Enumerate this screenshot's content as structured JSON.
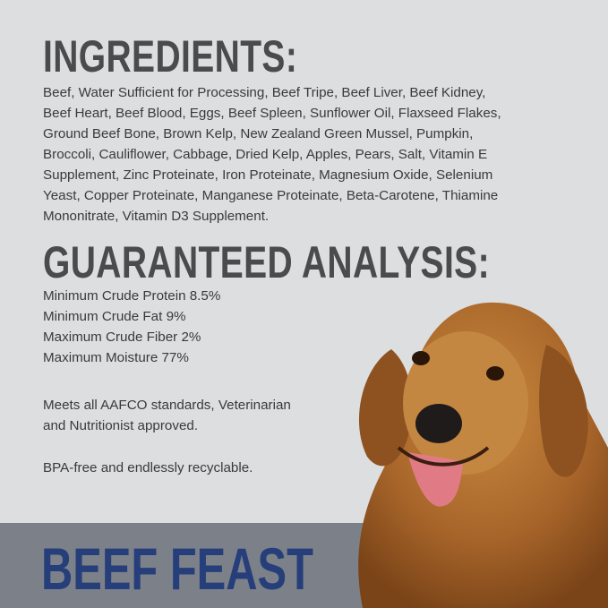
{
  "ingredients": {
    "heading": "INGREDIENTS:",
    "lines": [
      "Beef, Water Sufficient for Processing, Beef Tripe, Beef Liver, Beef Kidney,",
      "Beef Heart, Beef Blood, Eggs, Beef Spleen, Sunflower Oil, Flaxseed Flakes,",
      "Ground Beef Bone, Brown Kelp, New Zealand Green Mussel, Pumpkin,",
      "Broccoli, Cauliflower, Cabbage, Dried Kelp, Apples, Pears, Salt, Vitamin E",
      "Supplement, Zinc Proteinate, Iron Proteinate, Magnesium Oxide, Selenium",
      "Yeast, Copper Proteinate, Manganese Proteinate, Beta-Carotene, Thiamine",
      "Mononitrate, Vitamin D3 Supplement."
    ]
  },
  "analysis": {
    "heading": "GUARANTEED ANALYSIS:",
    "lines": [
      "Minimum Crude Protein 8.5%",
      "Minimum Crude Fat 9%",
      "Maximum Crude Fiber 2%",
      "Maximum Moisture 77%"
    ],
    "standards": [
      "Meets all AAFCO standards, Veterinarian",
      "and Nutritionist approved."
    ],
    "packaging": "BPA-free and endlessly recyclable."
  },
  "product_name": "BEEF FEAST",
  "colors": {
    "background": "#dcdedf",
    "band": "#7c8089",
    "title": "#263f7a",
    "heading": "#4a4b4d"
  }
}
